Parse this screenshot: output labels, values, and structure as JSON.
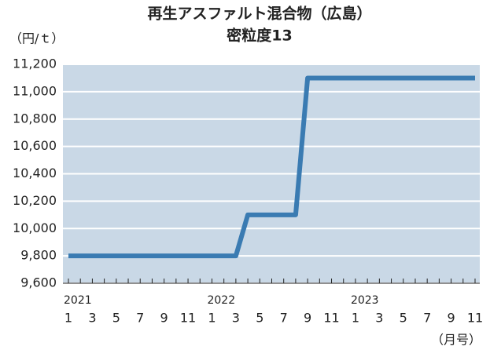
{
  "chart_data": {
    "type": "line",
    "title": "再生アスファルト混合物（広島）",
    "subtitle": "密粒度13",
    "y_unit": "（円/ｔ）",
    "x_unit": "（月号）",
    "categories": [
      "1",
      null,
      "3",
      null,
      "5",
      null,
      "7",
      null,
      "9",
      null,
      "11",
      null,
      "1",
      null,
      "3",
      null,
      "5",
      null,
      "7",
      null,
      "9",
      null,
      "11",
      null,
      "1",
      null,
      "3",
      null,
      "5",
      null,
      "7",
      null,
      "9",
      null,
      "11"
    ],
    "year_labels": [
      "2021",
      null,
      null,
      null,
      null,
      null,
      null,
      null,
      null,
      null,
      null,
      null,
      "2022",
      null,
      null,
      null,
      null,
      null,
      null,
      null,
      null,
      null,
      null,
      null,
      "2023",
      null,
      null,
      null,
      null,
      null,
      null,
      null,
      null,
      null,
      null
    ],
    "values": [
      9800,
      9800,
      9800,
      9800,
      9800,
      9800,
      9800,
      9800,
      9800,
      9800,
      9800,
      9800,
      9800,
      9800,
      9800,
      10100,
      10100,
      10100,
      10100,
      10100,
      11100,
      11100,
      11100,
      11100,
      11100,
      11100,
      11100,
      11100,
      11100,
      11100,
      11100,
      11100,
      11100,
      11100,
      11100
    ],
    "color": "#3a7bb2",
    "ylim": [
      9600,
      11200
    ],
    "yticks": [
      {
        "value": 9600,
        "label": "9,600"
      },
      {
        "value": 9800,
        "label": "9,800"
      },
      {
        "value": 10000,
        "label": "10,000"
      },
      {
        "value": 10200,
        "label": "10,200"
      },
      {
        "value": 10400,
        "label": "10,400"
      },
      {
        "value": 10600,
        "label": "10,600"
      },
      {
        "value": 10800,
        "label": "10,800"
      },
      {
        "value": 11000,
        "label": "11,000"
      },
      {
        "value": 11200,
        "label": "11,200"
      }
    ],
    "grid": true
  }
}
